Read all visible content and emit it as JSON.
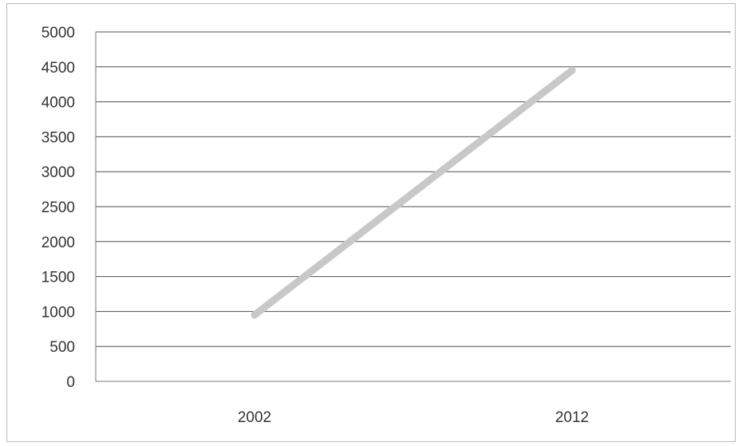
{
  "chart_data": {
    "type": "line",
    "title": "",
    "xlabel": "",
    "ylabel": "",
    "categories": [
      "2002",
      "2012"
    ],
    "series": [
      {
        "values": [
          950,
          4450
        ],
        "color": "#c8c8c8"
      }
    ],
    "ylim": [
      0,
      5000
    ],
    "y_ticks": [
      0,
      500,
      1000,
      1500,
      2000,
      2500,
      3000,
      3500,
      4000,
      4500,
      5000
    ],
    "grid": true,
    "legend": "none"
  }
}
